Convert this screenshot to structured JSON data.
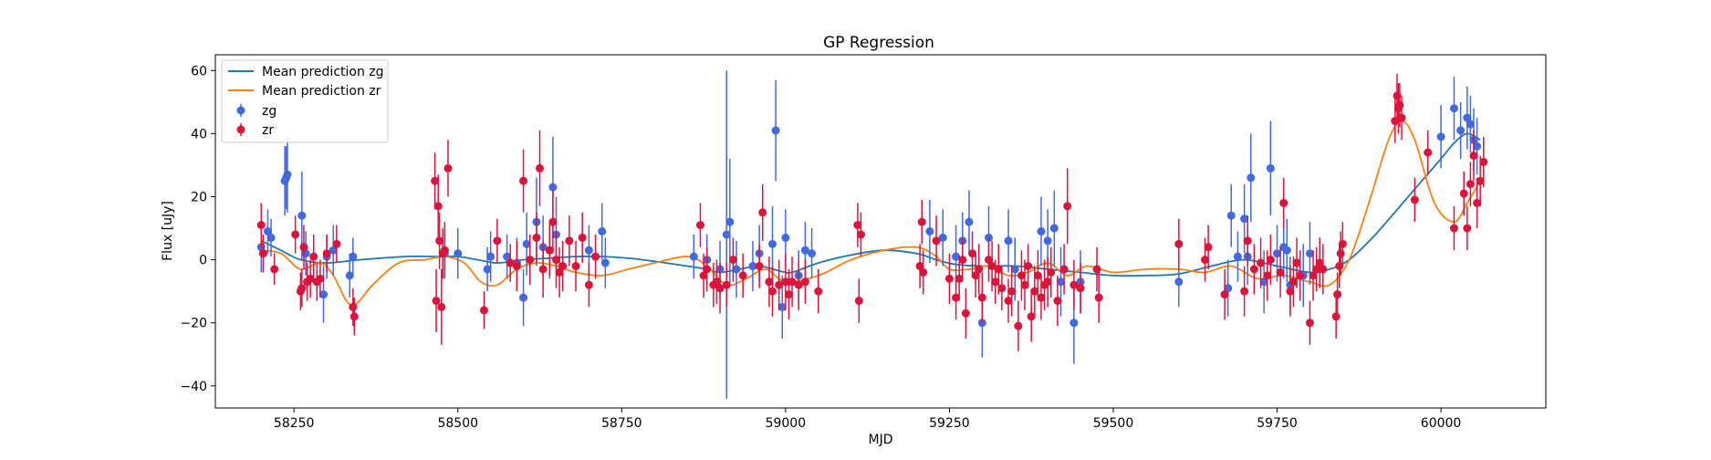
{
  "chart_data": {
    "type": "scatter",
    "title": "GP Regression",
    "xlabel": "MJD",
    "ylabel": "Flux [uJy]",
    "xlim": [
      58130,
      60160
    ],
    "ylim": [
      -47,
      65
    ],
    "xticks": [
      58250,
      58500,
      58750,
      59000,
      59250,
      59500,
      59750,
      60000
    ],
    "yticks": [
      -40,
      -20,
      0,
      20,
      40,
      60
    ],
    "xtick_labels": [
      "58250",
      "58500",
      "58750",
      "59000",
      "59250",
      "59500",
      "59750",
      "60000"
    ],
    "ytick_labels": [
      "−40",
      "−20",
      "0",
      "20",
      "40",
      "60"
    ],
    "grid": false,
    "legend_position": "upper-left",
    "legend": [
      {
        "label": "Mean prediction zg",
        "kind": "line",
        "color": "#1f77b4"
      },
      {
        "label": "Mean prediction zr",
        "kind": "line",
        "color": "#ff7f0e"
      },
      {
        "label": "zg",
        "kind": "errorbar",
        "color": "#4169e1"
      },
      {
        "label": "zr",
        "kind": "errorbar",
        "color": "#dc143c"
      }
    ],
    "lines": [
      {
        "name": "Mean prediction zg",
        "color": "#1f77b4",
        "x": [
          58200,
          58230,
          58260,
          58300,
          58350,
          58420,
          58470,
          58500,
          58530,
          58560,
          58600,
          58640,
          58680,
          58720,
          58760,
          58800,
          58850,
          58880,
          58900,
          58930,
          58960,
          58990,
          59010,
          59050,
          59100,
          59150,
          59200,
          59230,
          59260,
          59300,
          59350,
          59400,
          59450,
          59500,
          59550,
          59600,
          59650,
          59700,
          59750,
          59800,
          59830,
          59860,
          59900,
          59950,
          60000,
          60020,
          60040,
          60060
        ],
        "y": [
          6,
          3,
          0,
          -1,
          0,
          1,
          1,
          1,
          0,
          -1,
          0,
          0.5,
          1,
          1,
          0.5,
          -0.5,
          -2,
          -3,
          -4,
          -3,
          -2,
          -3.5,
          -4,
          -1,
          1.5,
          3,
          2,
          0,
          -1.5,
          -2,
          -2,
          -3,
          -4,
          -5,
          -5,
          -4.5,
          -2,
          0,
          -2,
          -4,
          -3,
          0,
          8,
          20,
          32,
          37,
          40,
          38
        ]
      },
      {
        "name": "Mean prediction zr",
        "color": "#ff7f0e",
        "x": [
          58200,
          58230,
          58260,
          58290,
          58310,
          58330,
          58345,
          58370,
          58410,
          58450,
          58480,
          58510,
          58535,
          58560,
          58590,
          58620,
          58650,
          58680,
          58720,
          58760,
          58800,
          58850,
          58880,
          58910,
          58940,
          58970,
          59000,
          59050,
          59100,
          59150,
          59200,
          59230,
          59250,
          59280,
          59310,
          59340,
          59370,
          59400,
          59430,
          59460,
          59500,
          59550,
          59600,
          59640,
          59680,
          59720,
          59760,
          59800,
          59830,
          59860,
          59890,
          59920,
          59940,
          59960,
          59990,
          60020,
          60040,
          60060
        ],
        "y": [
          3,
          2,
          -3,
          -1,
          -5,
          -13,
          -14,
          -8,
          -1,
          0,
          1,
          -1,
          -7,
          -8,
          -3,
          -1,
          -2,
          -4,
          -5,
          -3,
          -1,
          1,
          -2,
          -8,
          -6,
          -3,
          -7,
          -5,
          0,
          3,
          4,
          1,
          -3,
          -3,
          -2,
          -5,
          -4,
          -1,
          -5,
          -2,
          -4,
          -3,
          -3,
          -4,
          -2,
          -6,
          -5,
          -7,
          -8,
          0,
          18,
          38,
          44,
          38,
          18,
          12,
          18,
          25
        ]
      }
    ],
    "series": [
      {
        "name": "zg",
        "color": "#4169e1",
        "x": [
          58200,
          58210,
          58215,
          58240,
          58238,
          58236,
          58262,
          58268,
          58295,
          58300,
          58310,
          58335,
          58340,
          58480,
          58500,
          58545,
          58550,
          58575,
          58590,
          58600,
          58605,
          58620,
          58630,
          58640,
          58645,
          58650,
          58700,
          58720,
          58725,
          58860,
          58880,
          58900,
          58910,
          58915,
          58925,
          58950,
          58960,
          58980,
          58985,
          58995,
          59000,
          59020,
          59030,
          59040,
          59220,
          59240,
          59260,
          59270,
          59280,
          59300,
          59310,
          59340,
          59350,
          59390,
          59400,
          59410,
          59420,
          59440,
          59450,
          59600,
          59675,
          59680,
          59690,
          59700,
          59705,
          59710,
          59730,
          59740,
          59750,
          59760,
          59765,
          59770,
          59790,
          59800,
          60000,
          60020,
          60030,
          60040,
          60045,
          60050,
          60055
        ],
        "y": [
          4,
          9,
          7,
          27,
          26,
          25,
          14,
          2,
          -11,
          1,
          3,
          -5,
          1,
          2,
          2,
          -3,
          1,
          1,
          -1,
          -12,
          5,
          12,
          4,
          3,
          23,
          8,
          3,
          9,
          -1,
          1,
          0,
          -3,
          8,
          12,
          -3,
          -2,
          2,
          5,
          41,
          -15,
          7,
          -5,
          3,
          2,
          9,
          7,
          1,
          6,
          12,
          -20,
          7,
          6,
          -3,
          9,
          6,
          10,
          -7,
          -20,
          -7,
          -7,
          -9,
          14,
          1,
          13,
          1,
          26,
          -7,
          29,
          2,
          4,
          3,
          -8,
          -5,
          2,
          39,
          48,
          41,
          45,
          43,
          38,
          36
        ],
        "err": [
          8,
          7,
          6,
          12,
          10,
          11,
          14,
          7,
          9,
          7,
          8,
          7,
          6,
          7,
          8,
          7,
          8,
          7,
          8,
          9,
          10,
          14,
          10,
          9,
          16,
          12,
          8,
          9,
          8,
          7,
          8,
          9,
          52,
          20,
          9,
          8,
          9,
          12,
          16,
          10,
          9,
          8,
          9,
          8,
          10,
          9,
          10,
          9,
          10,
          11,
          10,
          10,
          10,
          11,
          10,
          12,
          11,
          13,
          10,
          8,
          9,
          10,
          8,
          11,
          9,
          14,
          10,
          15,
          9,
          10,
          10,
          9,
          10,
          10,
          10,
          10,
          9,
          10,
          9,
          10,
          9
        ]
      },
      {
        "name": "zr",
        "color": "#dc143c",
        "x": [
          58200,
          58203,
          58220,
          58252,
          58260,
          58262,
          58265,
          58270,
          58275,
          58280,
          58285,
          58290,
          58300,
          58315,
          58340,
          58342,
          58465,
          58467,
          58470,
          58472,
          58475,
          58477,
          58480,
          58485,
          58540,
          58560,
          58580,
          58590,
          58600,
          58610,
          58620,
          58625,
          58630,
          58640,
          58645,
          58650,
          58655,
          58660,
          58670,
          58680,
          58690,
          58700,
          58710,
          58870,
          58875,
          58880,
          58890,
          58895,
          58900,
          58910,
          58920,
          58935,
          58960,
          58965,
          58975,
          58980,
          58990,
          59000,
          59005,
          59010,
          59020,
          59030,
          59050,
          59110,
          59112,
          59115,
          59205,
          59208,
          59210,
          59230,
          59250,
          59260,
          59265,
          59270,
          59275,
          59285,
          59290,
          59295,
          59300,
          59310,
          59315,
          59320,
          59325,
          59330,
          59340,
          59345,
          59355,
          59360,
          59365,
          59370,
          59375,
          59380,
          59385,
          59390,
          59395,
          59400,
          59405,
          59415,
          59425,
          59430,
          59440,
          59450,
          59475,
          59478,
          59600,
          59640,
          59645,
          59670,
          59700,
          59705,
          59715,
          59725,
          59735,
          59740,
          59755,
          59760,
          59770,
          59775,
          59780,
          59785,
          59800,
          59805,
          59810,
          59815,
          59820,
          59840,
          59842,
          59845,
          59847,
          59850,
          59930,
          59933,
          59935,
          59937,
          59940,
          59960,
          59980,
          60020,
          60035,
          60040,
          60045,
          60050,
          60055,
          60060,
          60065
        ],
        "y": [
          11,
          2,
          -3,
          8,
          -10,
          -9,
          4,
          -7,
          -6,
          1,
          -7,
          -6,
          2,
          5,
          -15,
          -18,
          25,
          -13,
          17,
          6,
          -15,
          2,
          3,
          29,
          -16,
          6,
          -1,
          -2,
          25,
          0,
          7,
          29,
          -3,
          3,
          12,
          0,
          -4,
          -2,
          6,
          -2,
          7,
          -8,
          1,
          11,
          -5,
          -3,
          -8,
          -7,
          -9,
          -8,
          0,
          -5,
          -2,
          15,
          -7,
          -10,
          -8,
          -7,
          -11,
          -7,
          -8,
          -7,
          -10,
          11,
          -13,
          8,
          -2,
          12,
          -4,
          6,
          -6,
          -12,
          -6,
          0,
          -17,
          2,
          -5,
          -3,
          -12,
          0,
          -2,
          -7,
          -3,
          -9,
          -13,
          -10,
          -21,
          -5,
          -8,
          -2,
          -18,
          -10,
          -5,
          -12,
          -8,
          -7,
          -4,
          -13,
          -3,
          17,
          -8,
          -9,
          -3,
          -12,
          5,
          0,
          4,
          -11,
          -10,
          6,
          -3,
          -1,
          -5,
          0,
          -4,
          18,
          -10,
          -7,
          -1,
          -5,
          -20,
          -5,
          -3,
          -1,
          -3,
          -18,
          -11,
          -2,
          2,
          5,
          44,
          52,
          48,
          49,
          45,
          19,
          34,
          10,
          21,
          10,
          24,
          33,
          18,
          25,
          31
        ],
        "err": [
          7,
          6,
          5,
          6,
          6,
          6,
          7,
          6,
          6,
          7,
          6,
          6,
          6,
          6,
          6,
          6,
          9,
          10,
          10,
          9,
          12,
          8,
          9,
          9,
          6,
          7,
          6,
          8,
          10,
          8,
          8,
          12,
          9,
          8,
          10,
          9,
          8,
          8,
          8,
          8,
          8,
          7,
          7,
          7,
          7,
          7,
          7,
          7,
          8,
          7,
          7,
          7,
          7,
          9,
          8,
          8,
          8,
          9,
          8,
          8,
          8,
          7,
          7,
          7,
          7,
          7,
          7,
          7,
          7,
          8,
          8,
          7,
          7,
          7,
          8,
          7,
          7,
          8,
          8,
          7,
          8,
          7,
          8,
          7,
          7,
          8,
          8,
          8,
          8,
          7,
          8,
          8,
          8,
          7,
          8,
          8,
          8,
          8,
          8,
          12,
          8,
          8,
          7,
          8,
          8,
          7,
          7,
          8,
          8,
          8,
          8,
          8,
          8,
          8,
          8,
          8,
          8,
          8,
          8,
          8,
          7,
          8,
          7,
          8,
          8,
          7,
          7,
          7,
          7,
          7,
          7,
          7,
          8,
          7,
          7,
          7,
          7,
          7,
          7,
          7,
          7,
          8,
          8,
          8,
          8
        ]
      }
    ]
  }
}
